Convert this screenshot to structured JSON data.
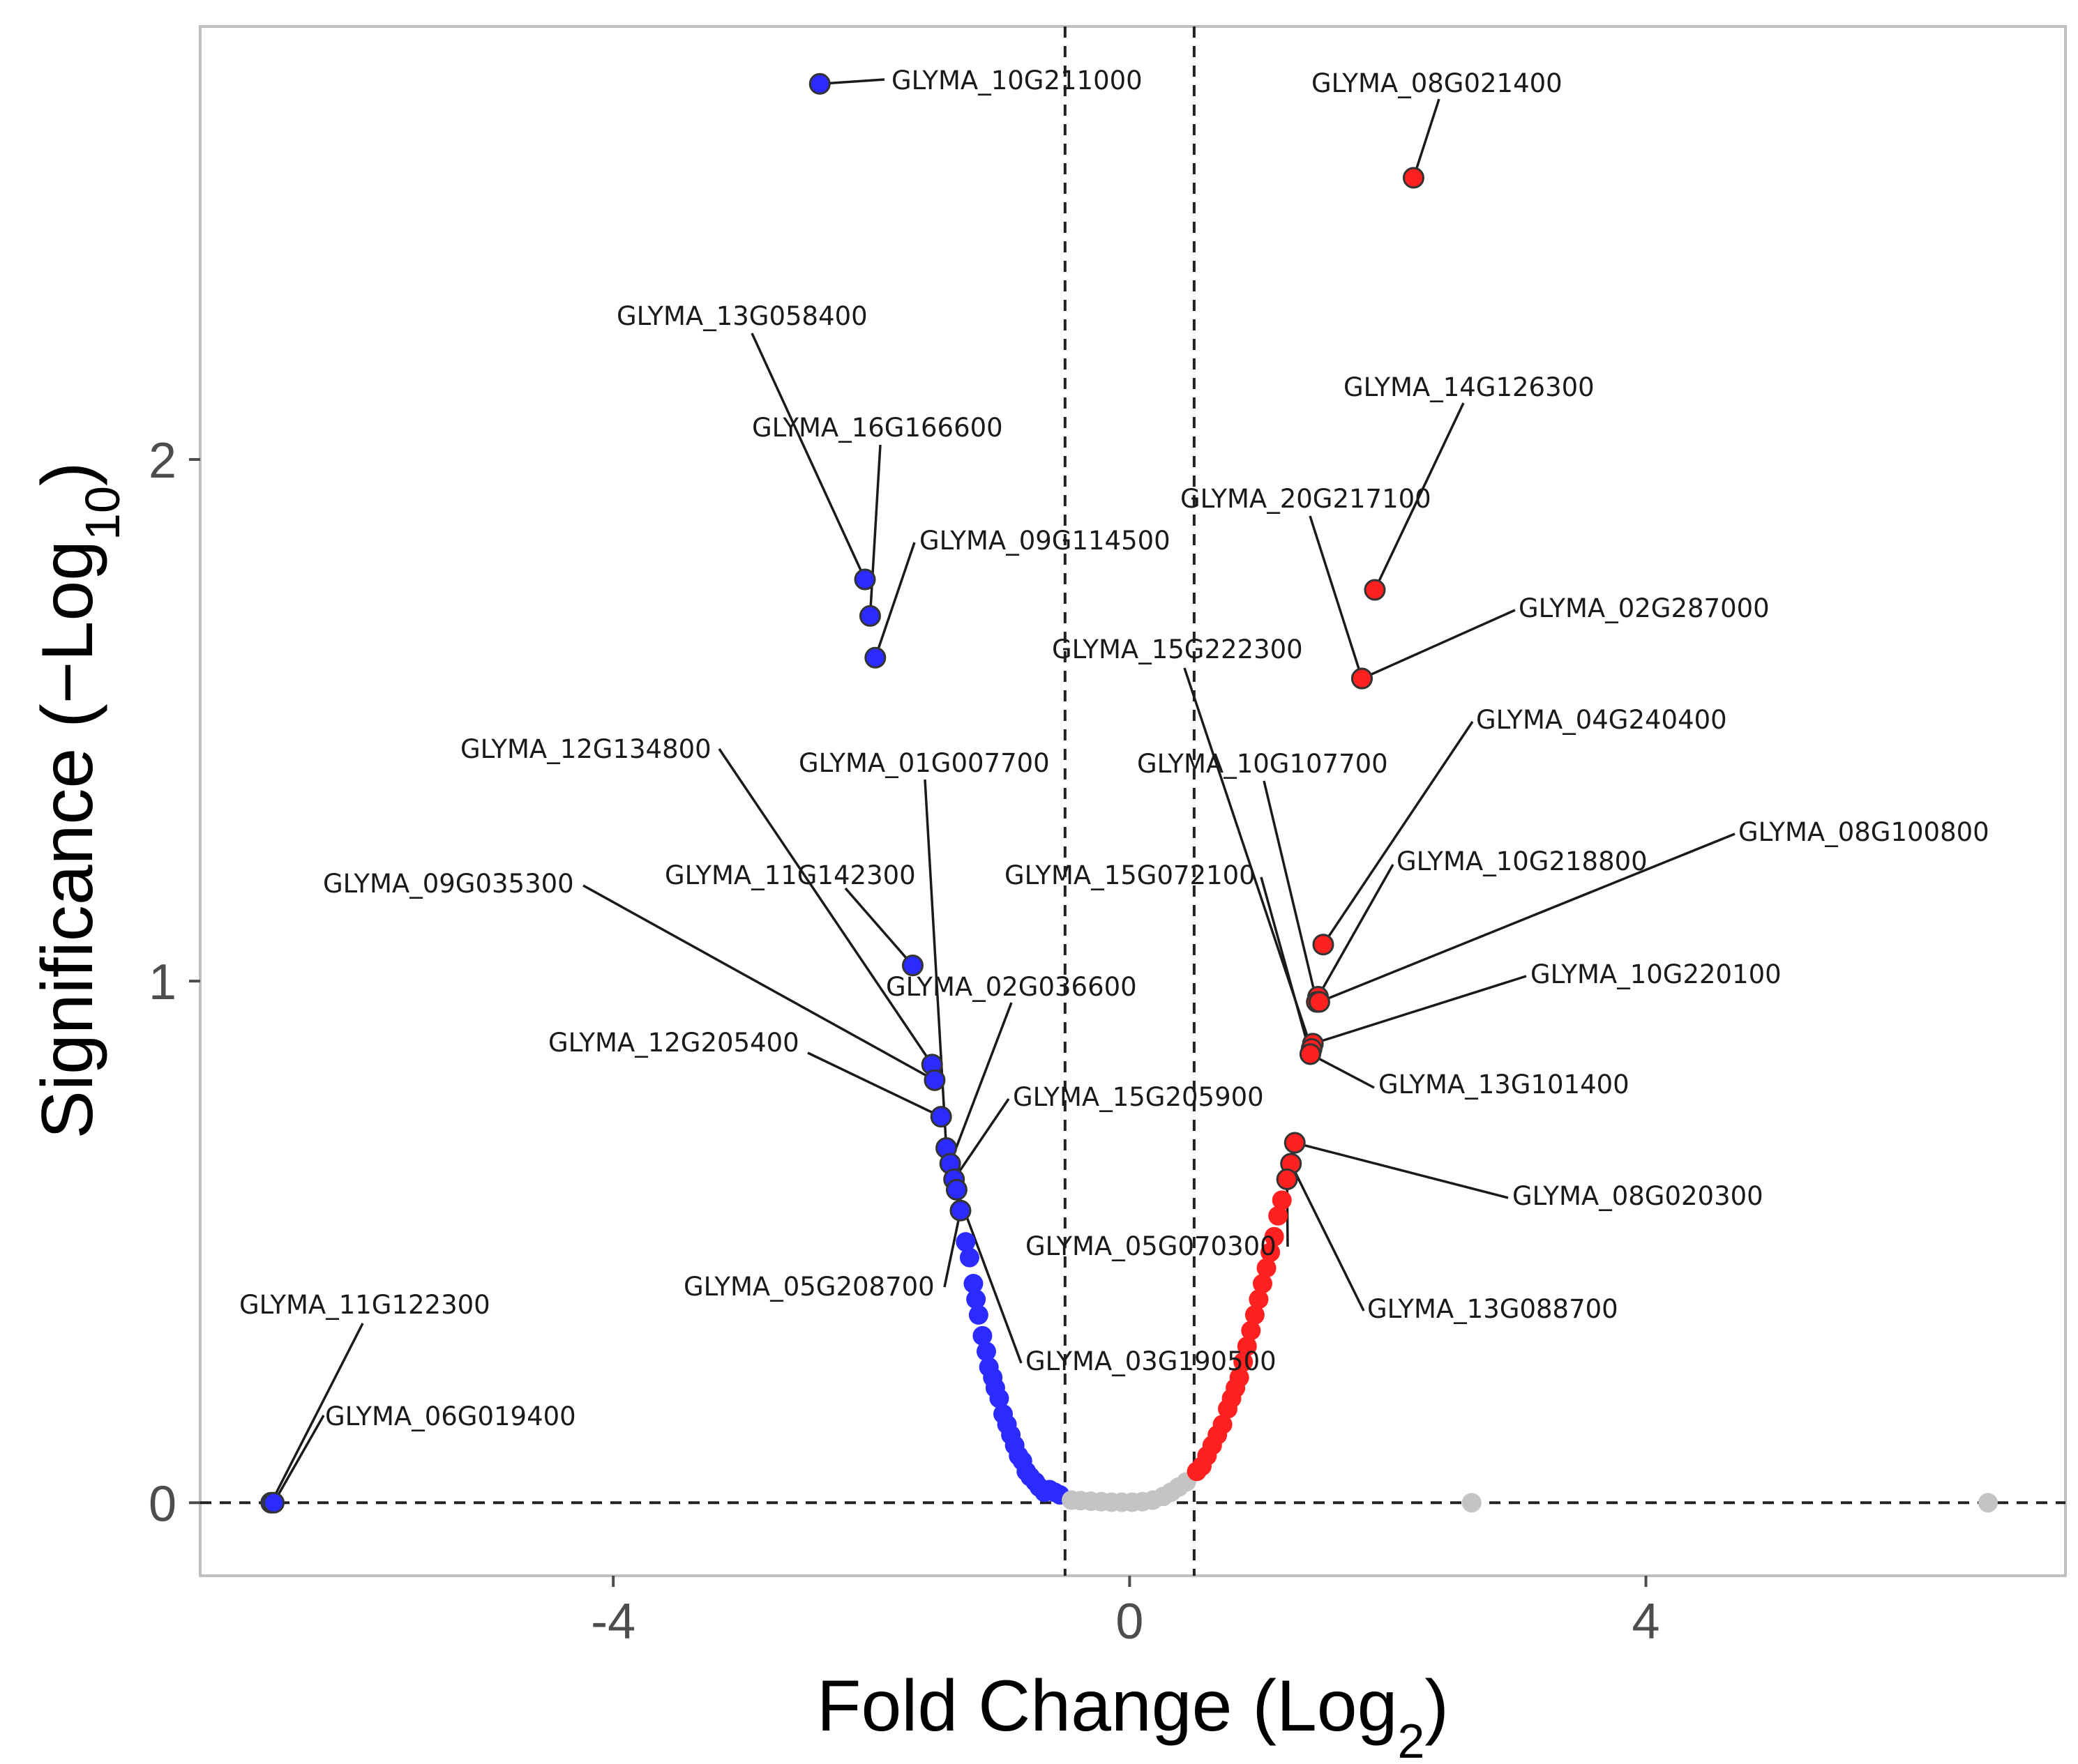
{
  "chart_data": {
    "type": "scatter",
    "title": "",
    "xlabel": "Fold Change (Log",
    "xlabel_sub": "2",
    "xlabel_close": ")",
    "ylabel": "Significance (−Log",
    "ylabel_sub": "10",
    "ylabel_close": ")",
    "xlim": [
      -7.2,
      7.25
    ],
    "ylim": [
      -0.14,
      2.83
    ],
    "x_ticks": [
      -4,
      0,
      4
    ],
    "x_tick_labels": [
      "-4",
      "0",
      "4"
    ],
    "y_ticks": [
      0,
      1,
      2
    ],
    "y_tick_labels": [
      "0",
      "1",
      "2"
    ],
    "thresholds": {
      "fold_change": [
        -0.5,
        0.5
      ],
      "significance": 0
    },
    "grid": false,
    "colors": {
      "down": "#2b2bff",
      "up": "#ff2020",
      "ns": "#c4c4c4",
      "point_edge": "#333333"
    },
    "labeled_points": [
      {
        "gene": "GLYMA_10G211000",
        "x": -2.4,
        "y": 2.72,
        "group": "down"
      },
      {
        "gene": "GLYMA_13G058400",
        "x": -2.05,
        "y": 1.77,
        "group": "down"
      },
      {
        "gene": "GLYMA_16G166600",
        "x": -2.01,
        "y": 1.7,
        "group": "down"
      },
      {
        "gene": "GLYMA_09G114500",
        "x": -1.97,
        "y": 1.62,
        "group": "down"
      },
      {
        "gene": "GLYMA_11G142300",
        "x": -1.68,
        "y": 1.03,
        "group": "down"
      },
      {
        "gene": "GLYMA_12G134800",
        "x": -1.53,
        "y": 0.84,
        "group": "down"
      },
      {
        "gene": "GLYMA_09G035300",
        "x": -1.51,
        "y": 0.81,
        "group": "down"
      },
      {
        "gene": "GLYMA_12G205400",
        "x": -1.46,
        "y": 0.74,
        "group": "down"
      },
      {
        "gene": "GLYMA_01G007700",
        "x": -1.42,
        "y": 0.68,
        "group": "down"
      },
      {
        "gene": "GLYMA_02G036600",
        "x": -1.39,
        "y": 0.65,
        "group": "down"
      },
      {
        "gene": "GLYMA_15G205900",
        "x": -1.36,
        "y": 0.62,
        "group": "down"
      },
      {
        "gene": "GLYMA_03G190500",
        "x": -1.34,
        "y": 0.6,
        "group": "down"
      },
      {
        "gene": "GLYMA_05G208700",
        "x": -1.31,
        "y": 0.56,
        "group": "down"
      },
      {
        "gene": "GLYMA_11G122300",
        "x": -6.65,
        "y": 0.0,
        "group": "down"
      },
      {
        "gene": "GLYMA_06G019400",
        "x": -6.63,
        "y": 0.0,
        "group": "down"
      },
      {
        "gene": "GLYMA_08G021400",
        "x": 2.2,
        "y": 2.54,
        "group": "up"
      },
      {
        "gene": "GLYMA_14G126300",
        "x": 1.9,
        "y": 1.75,
        "group": "up"
      },
      {
        "gene": "GLYMA_20G217100",
        "x": 1.8,
        "y": 1.58,
        "group": "up"
      },
      {
        "gene": "GLYMA_02G287000",
        "x": 1.8,
        "y": 1.58,
        "group": "up"
      },
      {
        "gene": "GLYMA_04G240400",
        "x": 1.5,
        "y": 1.07,
        "group": "up"
      },
      {
        "gene": "GLYMA_10G218800",
        "x": 1.46,
        "y": 0.97,
        "group": "up"
      },
      {
        "gene": "GLYMA_10G107700",
        "x": 1.45,
        "y": 0.96,
        "group": "up"
      },
      {
        "gene": "GLYMA_08G100800",
        "x": 1.47,
        "y": 0.96,
        "group": "up"
      },
      {
        "gene": "GLYMA_10G220100",
        "x": 1.42,
        "y": 0.88,
        "group": "up"
      },
      {
        "gene": "GLYMA_15G222300",
        "x": 1.41,
        "y": 0.87,
        "group": "up"
      },
      {
        "gene": "GLYMA_15G072100",
        "x": 1.4,
        "y": 0.86,
        "group": "up"
      },
      {
        "gene": "GLYMA_13G101400",
        "x": 1.4,
        "y": 0.86,
        "group": "up"
      },
      {
        "gene": "GLYMA_08G020300",
        "x": 1.28,
        "y": 0.69,
        "group": "up"
      },
      {
        "gene": "GLYMA_13G088700",
        "x": 1.25,
        "y": 0.65,
        "group": "up"
      },
      {
        "gene": "GLYMA_05G070300",
        "x": 1.22,
        "y": 0.62,
        "group": "up"
      }
    ],
    "other_points": [
      {
        "x": -1.27,
        "y": 0.5,
        "group": "down"
      },
      {
        "x": -1.24,
        "y": 0.47,
        "group": "down"
      },
      {
        "x": -1.21,
        "y": 0.42,
        "group": "down"
      },
      {
        "x": -1.19,
        "y": 0.39,
        "group": "down"
      },
      {
        "x": -1.17,
        "y": 0.36,
        "group": "down"
      },
      {
        "x": -1.14,
        "y": 0.32,
        "group": "down"
      },
      {
        "x": -1.11,
        "y": 0.29,
        "group": "down"
      },
      {
        "x": -1.09,
        "y": 0.26,
        "group": "down"
      },
      {
        "x": -1.06,
        "y": 0.24,
        "group": "down"
      },
      {
        "x": -1.04,
        "y": 0.22,
        "group": "down"
      },
      {
        "x": -1.01,
        "y": 0.2,
        "group": "down"
      },
      {
        "x": -0.98,
        "y": 0.17,
        "group": "down"
      },
      {
        "x": -0.95,
        "y": 0.15,
        "group": "down"
      },
      {
        "x": -0.92,
        "y": 0.13,
        "group": "down"
      },
      {
        "x": -0.89,
        "y": 0.11,
        "group": "down"
      },
      {
        "x": -0.86,
        "y": 0.09,
        "group": "down"
      },
      {
        "x": -0.83,
        "y": 0.08,
        "group": "down"
      },
      {
        "x": -0.8,
        "y": 0.06,
        "group": "down"
      },
      {
        "x": -0.77,
        "y": 0.05,
        "group": "down"
      },
      {
        "x": -0.73,
        "y": 0.04,
        "group": "down"
      },
      {
        "x": -0.7,
        "y": 0.03,
        "group": "down"
      },
      {
        "x": -0.66,
        "y": 0.02,
        "group": "down"
      },
      {
        "x": -0.62,
        "y": 0.025,
        "group": "down"
      },
      {
        "x": -0.58,
        "y": 0.02,
        "group": "down"
      },
      {
        "x": -0.54,
        "y": 0.015,
        "group": "down"
      },
      {
        "x": -0.45,
        "y": 0.005,
        "group": "ns"
      },
      {
        "x": -0.38,
        "y": 0.004,
        "group": "ns"
      },
      {
        "x": -0.3,
        "y": 0.003,
        "group": "ns"
      },
      {
        "x": -0.22,
        "y": 0.002,
        "group": "ns"
      },
      {
        "x": -0.14,
        "y": 0.001,
        "group": "ns"
      },
      {
        "x": -0.06,
        "y": 0.001,
        "group": "ns"
      },
      {
        "x": 0.02,
        "y": 0.001,
        "group": "ns"
      },
      {
        "x": 0.1,
        "y": 0.002,
        "group": "ns"
      },
      {
        "x": 0.18,
        "y": 0.005,
        "group": "ns"
      },
      {
        "x": 0.26,
        "y": 0.012,
        "group": "ns"
      },
      {
        "x": 0.32,
        "y": 0.02,
        "group": "ns"
      },
      {
        "x": 0.38,
        "y": 0.03,
        "group": "ns"
      },
      {
        "x": 0.44,
        "y": 0.04,
        "group": "ns"
      },
      {
        "x": 2.65,
        "y": 0.0,
        "group": "ns"
      },
      {
        "x": 6.65,
        "y": 0.0,
        "group": "ns"
      },
      {
        "x": 0.52,
        "y": 0.06,
        "group": "up"
      },
      {
        "x": 0.56,
        "y": 0.07,
        "group": "up"
      },
      {
        "x": 0.6,
        "y": 0.09,
        "group": "up"
      },
      {
        "x": 0.64,
        "y": 0.11,
        "group": "up"
      },
      {
        "x": 0.68,
        "y": 0.13,
        "group": "up"
      },
      {
        "x": 0.72,
        "y": 0.15,
        "group": "up"
      },
      {
        "x": 0.76,
        "y": 0.18,
        "group": "up"
      },
      {
        "x": 0.79,
        "y": 0.2,
        "group": "up"
      },
      {
        "x": 0.82,
        "y": 0.22,
        "group": "up"
      },
      {
        "x": 0.85,
        "y": 0.24,
        "group": "up"
      },
      {
        "x": 0.88,
        "y": 0.27,
        "group": "up"
      },
      {
        "x": 0.91,
        "y": 0.3,
        "group": "up"
      },
      {
        "x": 0.94,
        "y": 0.33,
        "group": "up"
      },
      {
        "x": 0.97,
        "y": 0.36,
        "group": "up"
      },
      {
        "x": 1.0,
        "y": 0.39,
        "group": "up"
      },
      {
        "x": 1.03,
        "y": 0.42,
        "group": "up"
      },
      {
        "x": 1.06,
        "y": 0.45,
        "group": "up"
      },
      {
        "x": 1.09,
        "y": 0.48,
        "group": "up"
      },
      {
        "x": 1.12,
        "y": 0.51,
        "group": "up"
      },
      {
        "x": 1.15,
        "y": 0.55,
        "group": "up"
      },
      {
        "x": 1.18,
        "y": 0.58,
        "group": "up"
      }
    ]
  }
}
